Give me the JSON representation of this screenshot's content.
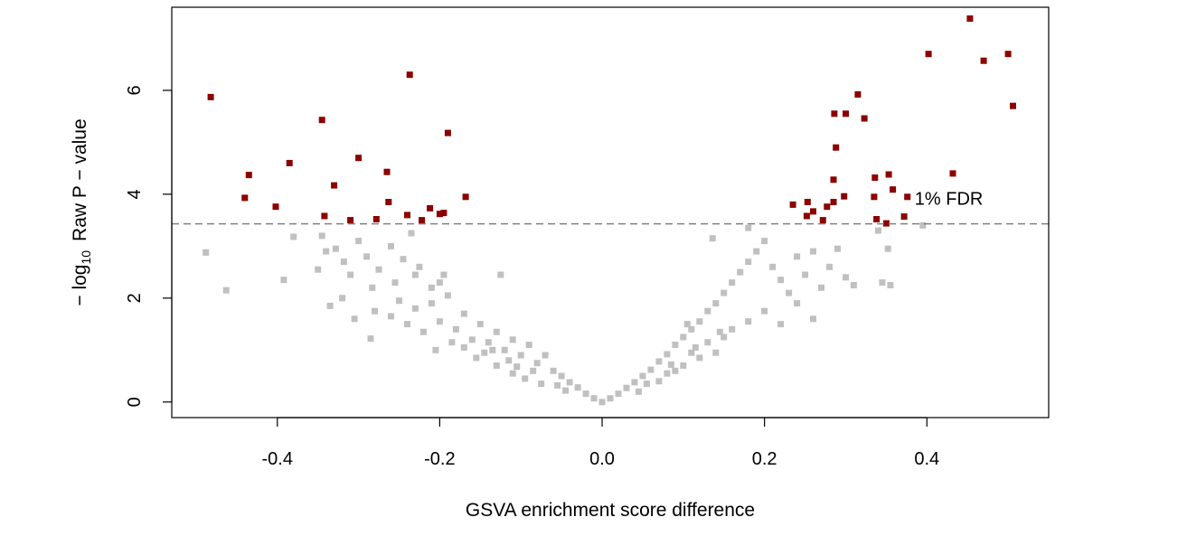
{
  "chart_data": {
    "type": "scatter",
    "title": "",
    "xlabel": "GSVA enrichment score difference",
    "ylabel_prefix": "− log",
    "ylabel_sub": "10",
    "ylabel_suffix": "Raw P − value",
    "xlim": [
      -0.53,
      0.55
    ],
    "ylim": [
      -0.3,
      7.6
    ],
    "xticks": [
      -0.4,
      -0.2,
      0.0,
      0.2,
      0.4
    ],
    "xtick_labels": [
      "-0.4",
      "-0.2",
      "0.0",
      "0.2",
      "0.4"
    ],
    "yticks": [
      0,
      2,
      4,
      6
    ],
    "ytick_labels": [
      "0",
      "2",
      "4",
      "6"
    ],
    "grid": false,
    "threshold": {
      "y": 3.43,
      "label": "1% FDR",
      "label_x": 0.385,
      "label_y": 3.8
    },
    "colors": {
      "significant": "#8b0000",
      "background": "#c0c0c0",
      "threshold": "#808080"
    },
    "series": [
      {
        "role": "significant",
        "points": [
          [
            -0.482,
            5.87
          ],
          [
            -0.44,
            3.93
          ],
          [
            -0.435,
            4.37
          ],
          [
            -0.402,
            3.76
          ],
          [
            -0.385,
            4.6
          ],
          [
            -0.345,
            5.43
          ],
          [
            -0.342,
            3.58
          ],
          [
            -0.33,
            4.17
          ],
          [
            -0.31,
            3.5
          ],
          [
            -0.3,
            4.7
          ],
          [
            -0.278,
            3.52
          ],
          [
            -0.265,
            4.43
          ],
          [
            -0.263,
            3.85
          ],
          [
            -0.24,
            3.6
          ],
          [
            -0.237,
            6.3
          ],
          [
            -0.222,
            3.5
          ],
          [
            -0.212,
            3.73
          ],
          [
            -0.2,
            3.62
          ],
          [
            -0.195,
            3.64
          ],
          [
            -0.19,
            5.18
          ],
          [
            -0.168,
            3.95
          ],
          [
            0.235,
            3.8
          ],
          [
            0.252,
            3.58
          ],
          [
            0.253,
            3.85
          ],
          [
            0.26,
            3.67
          ],
          [
            0.272,
            3.5
          ],
          [
            0.277,
            3.76
          ],
          [
            0.285,
            3.85
          ],
          [
            0.285,
            4.28
          ],
          [
            0.286,
            5.55
          ],
          [
            0.288,
            4.9
          ],
          [
            0.298,
            3.96
          ],
          [
            0.3,
            5.55
          ],
          [
            0.315,
            5.92
          ],
          [
            0.323,
            5.46
          ],
          [
            0.335,
            3.95
          ],
          [
            0.336,
            4.32
          ],
          [
            0.338,
            3.52
          ],
          [
            0.35,
            3.44
          ],
          [
            0.353,
            4.38
          ],
          [
            0.358,
            4.09
          ],
          [
            0.372,
            3.57
          ],
          [
            0.376,
            3.95
          ],
          [
            0.402,
            6.7
          ],
          [
            0.432,
            4.4
          ],
          [
            0.453,
            7.38
          ],
          [
            0.47,
            6.57
          ],
          [
            0.5,
            6.7
          ],
          [
            0.506,
            5.7
          ]
        ]
      },
      {
        "role": "background",
        "points": [
          [
            -0.488,
            2.88
          ],
          [
            -0.463,
            2.15
          ],
          [
            -0.392,
            2.35
          ],
          [
            -0.38,
            3.18
          ],
          [
            -0.35,
            2.55
          ],
          [
            -0.345,
            3.2
          ],
          [
            -0.34,
            2.9
          ],
          [
            -0.328,
            2.95
          ],
          [
            -0.318,
            2.7
          ],
          [
            -0.31,
            2.45
          ],
          [
            -0.3,
            3.1
          ],
          [
            -0.29,
            2.8
          ],
          [
            -0.283,
            2.2
          ],
          [
            -0.275,
            2.55
          ],
          [
            -0.26,
            3.0
          ],
          [
            -0.255,
            2.3
          ],
          [
            -0.245,
            2.75
          ],
          [
            -0.235,
            3.25
          ],
          [
            -0.225,
            2.6
          ],
          [
            -0.21,
            2.2
          ],
          [
            -0.195,
            2.45
          ],
          [
            -0.285,
            1.22
          ],
          [
            -0.305,
            1.6
          ],
          [
            -0.335,
            1.85
          ],
          [
            -0.32,
            2.0
          ],
          [
            -0.28,
            1.75
          ],
          [
            -0.26,
            1.65
          ],
          [
            -0.25,
            1.95
          ],
          [
            -0.24,
            1.5
          ],
          [
            -0.23,
            1.8
          ],
          [
            -0.22,
            1.35
          ],
          [
            -0.21,
            1.9
          ],
          [
            -0.2,
            1.55
          ],
          [
            -0.19,
            2.05
          ],
          [
            -0.18,
            1.4
          ],
          [
            -0.17,
            1.7
          ],
          [
            -0.16,
            1.2
          ],
          [
            -0.15,
            1.5
          ],
          [
            -0.14,
            1.15
          ],
          [
            -0.13,
            1.35
          ],
          [
            -0.12,
            1.0
          ],
          [
            -0.11,
            1.2
          ],
          [
            -0.1,
            0.9
          ],
          [
            -0.09,
            1.1
          ],
          [
            -0.08,
            0.75
          ],
          [
            -0.07,
            0.9
          ],
          [
            -0.06,
            0.6
          ],
          [
            -0.05,
            0.5
          ],
          [
            -0.04,
            0.38
          ],
          [
            -0.03,
            0.28
          ],
          [
            -0.02,
            0.16
          ],
          [
            -0.01,
            0.07
          ],
          [
            0.0,
            0.0
          ],
          [
            0.01,
            0.07
          ],
          [
            0.02,
            0.16
          ],
          [
            0.03,
            0.27
          ],
          [
            0.04,
            0.38
          ],
          [
            0.05,
            0.5
          ],
          [
            0.06,
            0.62
          ],
          [
            0.07,
            0.78
          ],
          [
            0.08,
            0.92
          ],
          [
            0.09,
            1.1
          ],
          [
            0.1,
            1.25
          ],
          [
            0.11,
            1.4
          ],
          [
            0.12,
            1.55
          ],
          [
            0.13,
            1.75
          ],
          [
            0.14,
            1.9
          ],
          [
            0.15,
            2.1
          ],
          [
            0.16,
            2.3
          ],
          [
            0.17,
            2.5
          ],
          [
            0.18,
            2.7
          ],
          [
            0.19,
            2.9
          ],
          [
            0.2,
            3.1
          ],
          [
            0.21,
            2.6
          ],
          [
            0.22,
            2.35
          ],
          [
            0.23,
            2.1
          ],
          [
            0.24,
            2.8
          ],
          [
            0.25,
            2.45
          ],
          [
            0.26,
            2.9
          ],
          [
            0.27,
            2.2
          ],
          [
            0.28,
            2.6
          ],
          [
            0.29,
            2.95
          ],
          [
            0.3,
            2.4
          ],
          [
            0.31,
            2.25
          ],
          [
            0.34,
            3.3
          ],
          [
            0.345,
            2.3
          ],
          [
            0.352,
            2.95
          ],
          [
            0.355,
            2.25
          ],
          [
            0.395,
            3.4
          ],
          [
            0.136,
            3.15
          ],
          [
            0.18,
            3.35
          ],
          [
            0.16,
            1.4
          ],
          [
            0.18,
            1.55
          ],
          [
            0.2,
            1.75
          ],
          [
            0.22,
            1.5
          ],
          [
            0.24,
            1.9
          ],
          [
            0.26,
            1.6
          ],
          [
            0.14,
            0.95
          ],
          [
            0.12,
            0.85
          ],
          [
            0.1,
            0.7
          ],
          [
            0.15,
            1.25
          ],
          [
            0.08,
            0.55
          ],
          [
            -0.155,
            0.85
          ],
          [
            -0.13,
            0.7
          ],
          [
            -0.11,
            0.55
          ],
          [
            -0.17,
            1.05
          ],
          [
            -0.145,
            0.95
          ],
          [
            -0.095,
            0.45
          ],
          [
            -0.075,
            0.35
          ],
          [
            -0.115,
            0.8
          ],
          [
            -0.125,
            2.45
          ],
          [
            -0.2,
            2.3
          ],
          [
            -0.23,
            2.45
          ],
          [
            -0.185,
            1.15
          ],
          [
            -0.205,
            1.0
          ],
          [
            0.07,
            0.4
          ],
          [
            0.09,
            0.6
          ],
          [
            0.11,
            0.95
          ],
          [
            0.13,
            1.15
          ],
          [
            0.105,
            1.5
          ],
          [
            0.045,
            0.2
          ],
          [
            -0.045,
            0.22
          ],
          [
            -0.055,
            0.32
          ],
          [
            0.055,
            0.35
          ],
          [
            -0.085,
            0.6
          ],
          [
            0.085,
            0.72
          ],
          [
            -0.105,
            0.68
          ],
          [
            0.115,
            1.05
          ],
          [
            -0.135,
            1.0
          ],
          [
            0.145,
            1.35
          ]
        ]
      }
    ]
  }
}
